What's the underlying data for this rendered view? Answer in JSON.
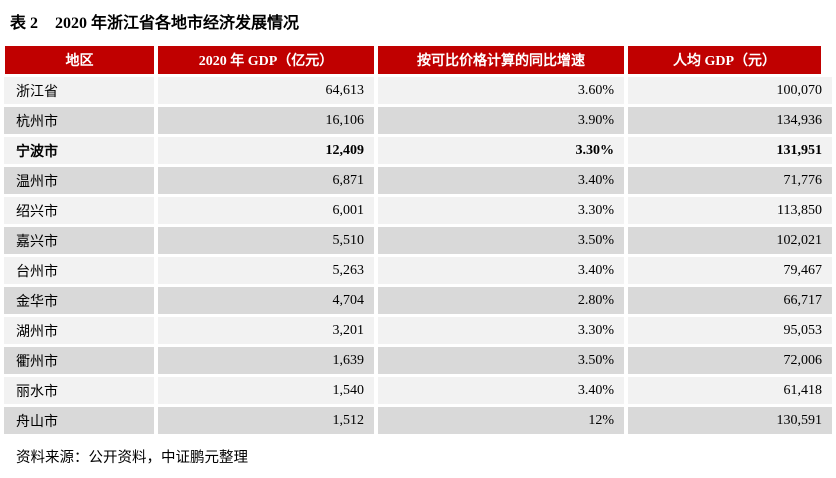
{
  "caption": {
    "label": "表 2",
    "text": "2020 年浙江省各地市经济发展情况"
  },
  "table": {
    "columns": [
      "地区",
      "2020 年 GDP（亿元）",
      "按可比价格计算的同比增速",
      "人均 GDP（元）"
    ],
    "rows": [
      {
        "region": "浙江省",
        "gdp": "64,613",
        "growth": "3.60%",
        "gdp_per_capita": "100,070",
        "bold": false
      },
      {
        "region": "杭州市",
        "gdp": "16,106",
        "growth": "3.90%",
        "gdp_per_capita": "134,936",
        "bold": false
      },
      {
        "region": "宁波市",
        "gdp": "12,409",
        "growth": "3.30%",
        "gdp_per_capita": "131,951",
        "bold": true
      },
      {
        "region": "温州市",
        "gdp": "6,871",
        "growth": "3.40%",
        "gdp_per_capita": "71,776",
        "bold": false
      },
      {
        "region": "绍兴市",
        "gdp": "6,001",
        "growth": "3.30%",
        "gdp_per_capita": "113,850",
        "bold": false
      },
      {
        "region": "嘉兴市",
        "gdp": "5,510",
        "growth": "3.50%",
        "gdp_per_capita": "102,021",
        "bold": false
      },
      {
        "region": "台州市",
        "gdp": "5,263",
        "growth": "3.40%",
        "gdp_per_capita": "79,467",
        "bold": false
      },
      {
        "region": "金华市",
        "gdp": "4,704",
        "growth": "2.80%",
        "gdp_per_capita": "66,717",
        "bold": false
      },
      {
        "region": "湖州市",
        "gdp": "3,201",
        "growth": "3.30%",
        "gdp_per_capita": "95,053",
        "bold": false
      },
      {
        "region": "衢州市",
        "gdp": "1,639",
        "growth": "3.50%",
        "gdp_per_capita": "72,006",
        "bold": false
      },
      {
        "region": "丽水市",
        "gdp": "1,540",
        "growth": "3.40%",
        "gdp_per_capita": "61,418",
        "bold": false
      },
      {
        "region": "舟山市",
        "gdp": "1,512",
        "growth": "12%",
        "gdp_per_capita": "130,591",
        "bold": false
      }
    ]
  },
  "source_note": "资料来源：公开资料，中证鹏元整理",
  "colors": {
    "header_bg": "#c00000",
    "header_text": "#ffffff",
    "row_light": "#f2f2f2",
    "row_dark": "#d9d9d9"
  }
}
